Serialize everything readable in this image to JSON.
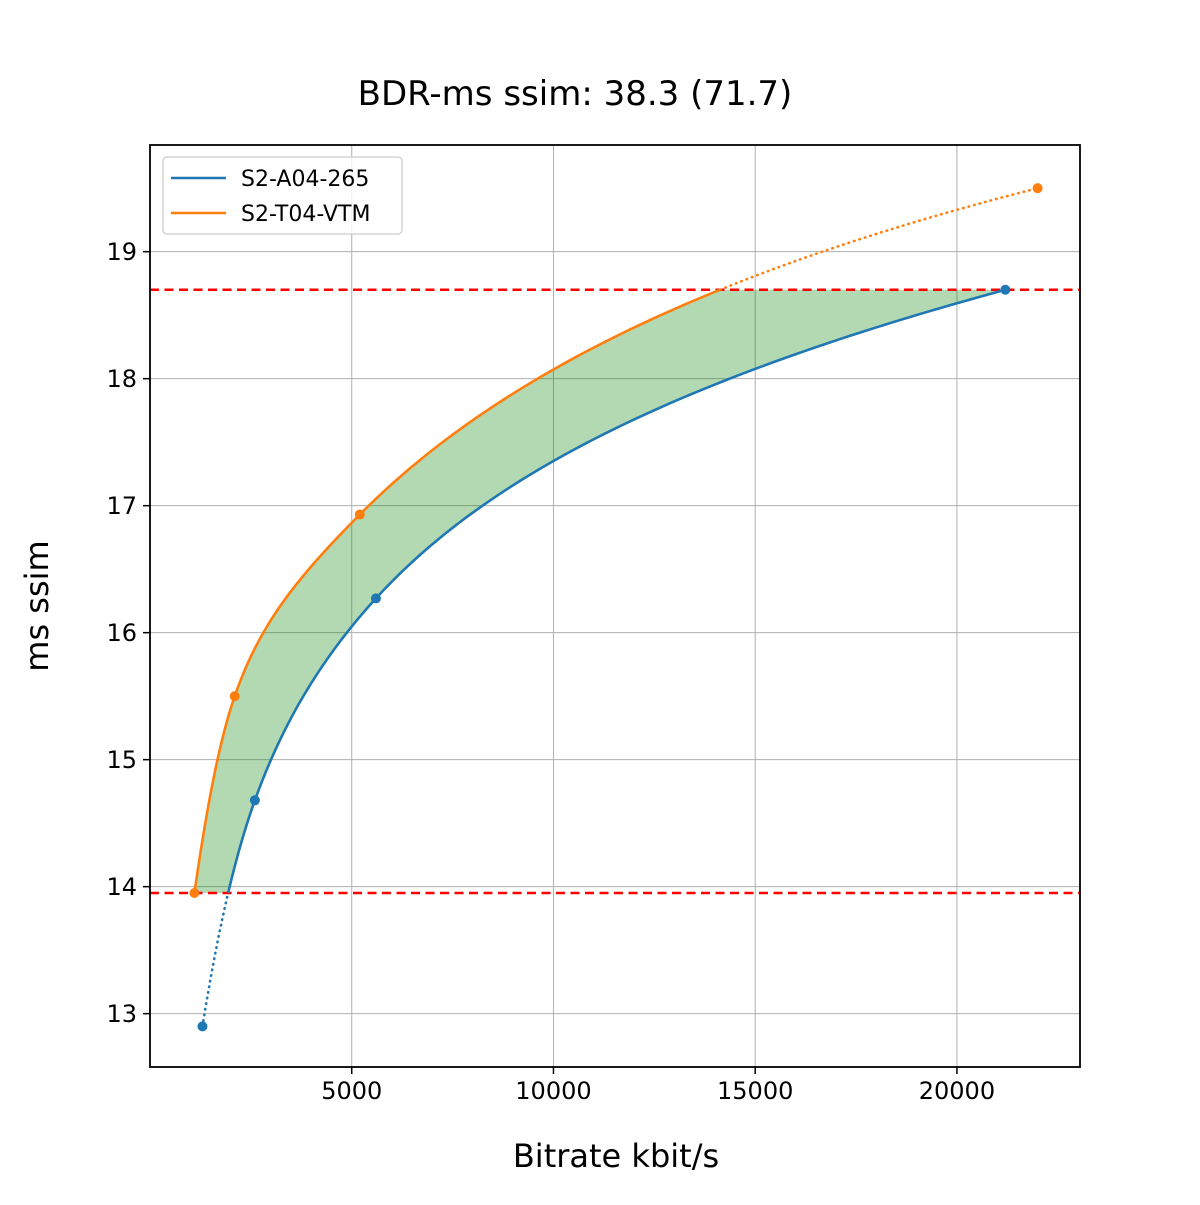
{
  "chart_data": {
    "type": "line",
    "title": "BDR-ms ssim: 38.3 (71.7)",
    "xlabel": "Bitrate kbit/s",
    "ylabel": "ms ssim",
    "xlim": [
      0,
      23050
    ],
    "ylim": [
      12.58,
      19.84
    ],
    "x_tick_values": [
      5000,
      10000,
      15000,
      20000
    ],
    "x_tick_labels": [
      "5000",
      "10000",
      "15000",
      "20000"
    ],
    "y_tick_values": [
      13,
      14,
      15,
      16,
      17,
      18,
      19
    ],
    "y_tick_labels": [
      "13",
      "14",
      "15",
      "16",
      "17",
      "18",
      "19"
    ],
    "grid": true,
    "grid_color": "#b0b0b0",
    "legend_position": "upper left",
    "series": [
      {
        "name": "S2-A04-265",
        "color": "#1f77b4",
        "marker": "circle",
        "x": [
          1300,
          2600,
          5600,
          21200
        ],
        "y": [
          12.9,
          14.68,
          16.27,
          18.7
        ]
      },
      {
        "name": "S2-T04-VTM",
        "color": "#ff7f0e",
        "marker": "circle",
        "x": [
          1100,
          2100,
          5200,
          22000
        ],
        "y": [
          13.95,
          15.5,
          16.93,
          19.5
        ]
      }
    ],
    "overlap_interval": {
      "y_low": 13.95,
      "y_high": 18.7,
      "line_color": "#ff0000",
      "line_style": "dashed"
    },
    "shaded_region": {
      "fill_color": "#008000",
      "opacity": 0.3,
      "description": "area between the two rate-distortion curves inside the overlap interval"
    },
    "curve_interpolation": "monotone cubic (pchip) in log10(bitrate); curve segments outside the overlap interval drawn dotted"
  }
}
